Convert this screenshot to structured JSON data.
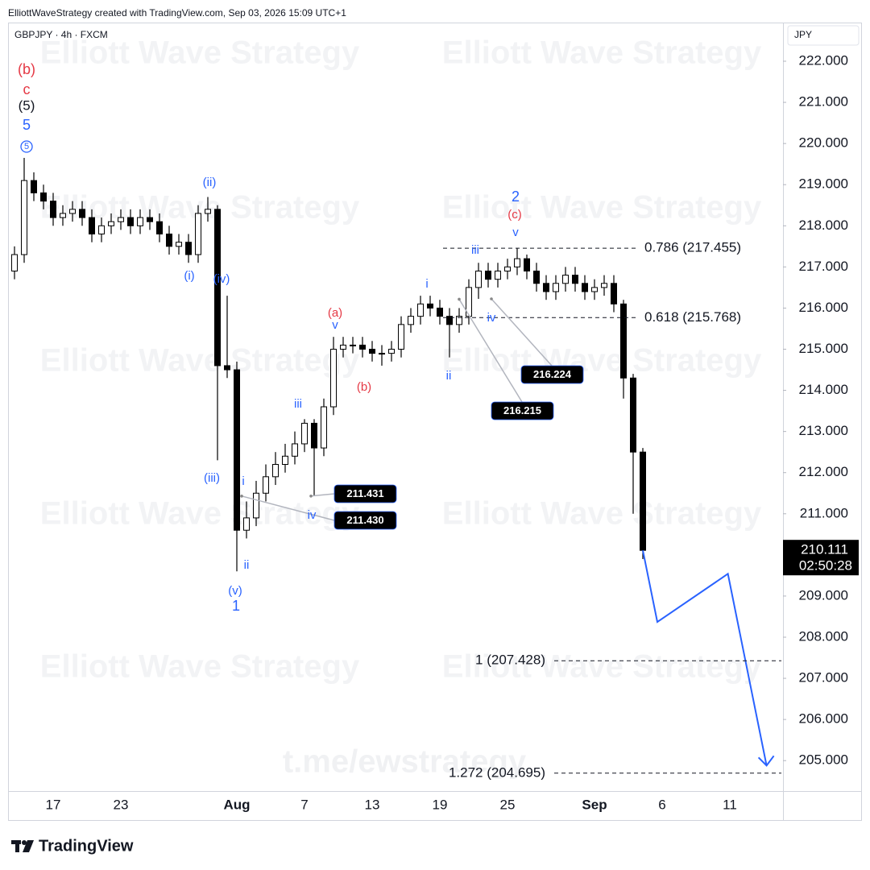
{
  "header": {
    "credit": "ElliottWaveStrategy created with TradingView.com, Sep 03, 2026 15:09 UTC+1",
    "symbol": "GBPJPY · 4h · FXCM",
    "currency": "JPY",
    "watermark": "Elliott Wave Strategy",
    "link": "t.me/ewstrategy",
    "brand": "TradingView"
  },
  "chart_data": {
    "type": "candlestick",
    "categories": [
      null,
      null,
      null,
      null,
      "17",
      null,
      null,
      null,
      null,
      null,
      null,
      "23",
      null,
      null,
      null,
      null,
      null,
      null,
      null,
      null,
      null,
      null,
      null,
      "Aug",
      null,
      null,
      null,
      null,
      null,
      null,
      "7",
      null,
      null,
      null,
      null,
      null,
      null,
      "13",
      null,
      null,
      null,
      null,
      null,
      null,
      "19",
      null,
      null,
      null,
      null,
      null,
      null,
      "25",
      null,
      null,
      null,
      null,
      null,
      null,
      null,
      null,
      "Sep",
      null,
      null,
      null,
      null,
      null,
      null,
      "6",
      null,
      null,
      null,
      null,
      null,
      null,
      "11",
      null,
      null,
      null,
      null,
      null
    ],
    "open": [
      216.9,
      217.3,
      219.1,
      218.8,
      218.6,
      218.2,
      218.3,
      218.4,
      218.2,
      217.8,
      218.0,
      218.1,
      218.2,
      218.0,
      218.2,
      218.1,
      217.8,
      217.5,
      217.6,
      217.3,
      218.3,
      218.4,
      214.6,
      214.5,
      210.6,
      210.9,
      211.5,
      211.9,
      212.2,
      212.4,
      212.7,
      213.2,
      212.6,
      213.6,
      215.0,
      215.1,
      215.1,
      215.0,
      214.9,
      214.9,
      215.0,
      215.6,
      215.8,
      216.1,
      216.0,
      215.8,
      215.6,
      215.8,
      216.5,
      216.9,
      216.7,
      216.9,
      217.0,
      217.2,
      216.9,
      216.6,
      216.4,
      216.6,
      216.8,
      216.6,
      216.4,
      216.5,
      216.6,
      216.1,
      214.3,
      212.5,
      null,
      null,
      null,
      null,
      null,
      null,
      null,
      null,
      null,
      null,
      null,
      null,
      null,
      null
    ],
    "high": [
      217.5,
      219.65,
      219.3,
      219.0,
      218.8,
      218.5,
      218.6,
      218.6,
      218.4,
      218.2,
      218.3,
      218.4,
      218.4,
      218.4,
      218.4,
      218.3,
      218.0,
      217.8,
      217.8,
      218.5,
      218.7,
      218.5,
      216.3,
      214.7,
      211.3,
      211.8,
      212.2,
      212.5,
      212.7,
      213.0,
      213.3,
      213.3,
      213.8,
      215.3,
      215.3,
      215.3,
      215.3,
      215.2,
      215.1,
      215.2,
      215.8,
      216.0,
      216.3,
      216.3,
      216.2,
      216.0,
      216.0,
      216.7,
      217.1,
      217.1,
      217.1,
      217.2,
      217.455,
      217.3,
      217.1,
      216.8,
      216.8,
      217.0,
      217.0,
      216.8,
      216.7,
      216.8,
      216.8,
      216.2,
      214.4,
      212.6,
      null,
      null,
      null,
      null,
      null,
      null,
      null,
      null,
      null,
      null,
      null,
      null,
      null,
      null
    ],
    "low": [
      216.7,
      217.1,
      218.6,
      218.4,
      218.0,
      218.0,
      218.1,
      218.0,
      217.6,
      217.6,
      217.8,
      217.9,
      217.8,
      217.8,
      217.9,
      217.6,
      217.3,
      217.3,
      217.1,
      217.1,
      218.1,
      212.3,
      214.3,
      209.6,
      210.4,
      210.7,
      211.3,
      211.7,
      212.0,
      212.2,
      212.5,
      211.431,
      212.4,
      213.4,
      214.8,
      214.9,
      214.8,
      214.7,
      214.6,
      214.7,
      214.8,
      215.4,
      215.6,
      215.8,
      215.6,
      214.8,
      215.4,
      215.6,
      216.224,
      216.5,
      216.5,
      216.7,
      216.8,
      216.7,
      216.4,
      216.2,
      216.2,
      216.4,
      216.4,
      216.2,
      216.2,
      216.3,
      215.9,
      213.8,
      211.0,
      209.9,
      null,
      null,
      null,
      null,
      null,
      null,
      null,
      null,
      null,
      null,
      null,
      null,
      null,
      null
    ],
    "close": [
      217.3,
      219.1,
      218.8,
      218.6,
      218.2,
      218.3,
      218.4,
      218.2,
      217.8,
      218.0,
      218.1,
      218.2,
      218.0,
      218.2,
      218.1,
      217.8,
      217.5,
      217.6,
      217.3,
      218.3,
      218.4,
      214.6,
      214.5,
      210.6,
      210.9,
      211.5,
      211.9,
      212.2,
      212.4,
      212.7,
      213.2,
      212.6,
      213.6,
      215.0,
      215.1,
      215.1,
      215.0,
      214.9,
      214.9,
      215.0,
      215.6,
      215.8,
      216.1,
      216.0,
      215.8,
      215.6,
      215.8,
      216.5,
      216.9,
      216.7,
      216.9,
      217.0,
      217.2,
      216.9,
      216.6,
      216.4,
      216.6,
      216.8,
      216.6,
      216.4,
      216.5,
      216.6,
      216.1,
      214.3,
      212.5,
      210.111,
      null,
      null,
      null,
      null,
      null,
      null,
      null,
      null,
      null,
      null,
      null,
      null,
      null,
      null
    ],
    "up_color": "#ffffff",
    "down_color": "#000000",
    "ylim": [
      204.26,
      222.94
    ],
    "yticks": [
      {
        "value": 205,
        "label": "205.000"
      },
      {
        "value": 206,
        "label": "206.000"
      },
      {
        "value": 207,
        "label": "207.000"
      },
      {
        "value": 208,
        "label": "208.000"
      },
      {
        "value": 209,
        "label": "209.000"
      },
      {
        "value": 210,
        "label": "210.000"
      },
      {
        "value": 211,
        "label": "211.000"
      },
      {
        "value": 212,
        "label": "212.000"
      },
      {
        "value": 213,
        "label": "213.000"
      },
      {
        "value": 214,
        "label": "214.000"
      },
      {
        "value": 215,
        "label": "215.000"
      },
      {
        "value": 216,
        "label": "216.000"
      },
      {
        "value": 217,
        "label": "217.000"
      },
      {
        "value": 218,
        "label": "218.000"
      },
      {
        "value": 219,
        "label": "219.000"
      },
      {
        "value": 220,
        "label": "220.000"
      },
      {
        "value": 221,
        "label": "221.000"
      },
      {
        "value": 222,
        "label": "222.000"
      }
    ],
    "last_price": 210.111,
    "countdown": "02:50:28",
    "levels": [
      {
        "value": 217.455,
        "label": "0.786 (217.455)"
      },
      {
        "value": 215.768,
        "label": "0.618 (215.768)"
      },
      {
        "value": 207.428,
        "label": "1 (207.428)"
      },
      {
        "value": 204.695,
        "label": "1.272 (204.695)"
      }
    ],
    "callouts": {
      "values": [
        211.431,
        211.43,
        216.215,
        216.224
      ],
      "value_labels": [
        "211.431",
        "211.430",
        "216.215",
        "216.224"
      ]
    },
    "projection": {
      "x": [
        65,
        66.5,
        73.8,
        77.8
      ],
      "values": [
        210.111,
        208.37,
        209.54,
        204.88
      ],
      "color": "#2962ff"
    },
    "annotations": [
      {
        "text": "(b)",
        "color": "#e53945"
      },
      {
        "text": "c",
        "color": "#e53945"
      },
      {
        "text": "(5)",
        "color": "#131722"
      },
      {
        "text": "5",
        "color": "#2962ff"
      },
      {
        "text": "5",
        "color": "#2962ff",
        "circled": true
      },
      {
        "text": "(ii)",
        "color": "#2962ff"
      },
      {
        "text": "(i)",
        "color": "#2962ff"
      },
      {
        "text": "(iv)",
        "color": "#2962ff"
      },
      {
        "text": "(iii)",
        "color": "#2962ff"
      },
      {
        "text": "i",
        "color": "#2962ff"
      },
      {
        "text": "ii",
        "color": "#2962ff"
      },
      {
        "text": "(v)",
        "color": "#2962ff"
      },
      {
        "text": "1",
        "color": "#2962ff"
      },
      {
        "text": "iii",
        "color": "#2962ff"
      },
      {
        "text": "iv",
        "color": "#2962ff"
      },
      {
        "text": "(a)",
        "color": "#e53945"
      },
      {
        "text": "v",
        "color": "#2962ff"
      },
      {
        "text": "(b)",
        "color": "#e53945"
      },
      {
        "text": "i",
        "color": "#2962ff"
      },
      {
        "text": "ii",
        "color": "#2962ff"
      },
      {
        "text": "iii",
        "color": "#2962ff"
      },
      {
        "text": "iv",
        "color": "#2962ff"
      },
      {
        "text": "(c)",
        "color": "#e53945"
      },
      {
        "text": "v",
        "color": "#2962ff"
      },
      {
        "text": "2",
        "color": "#2962ff"
      }
    ]
  }
}
